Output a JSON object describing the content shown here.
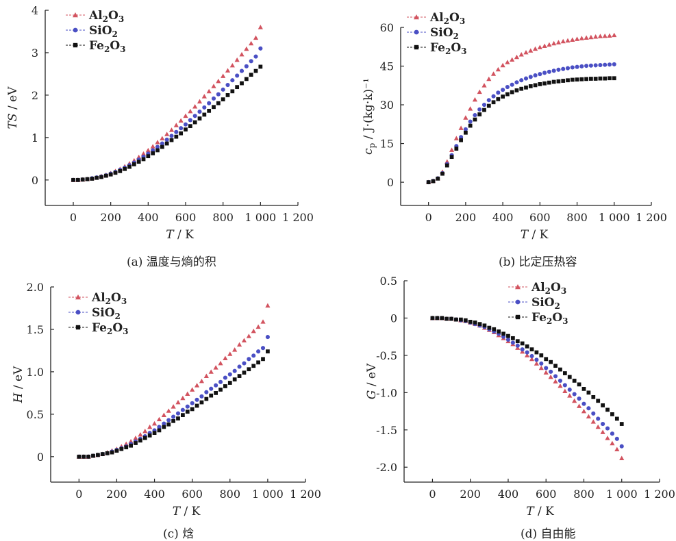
{
  "colors": {
    "Al2O3": "#d2535f",
    "SiO2": "#4a4fc4",
    "Fe2O3": "#111111",
    "axis": "#222222"
  },
  "markers": {
    "Al2O3": "triangle",
    "SiO2": "circle",
    "Fe2O3": "square"
  },
  "panels": [
    {
      "caption": "(a) 温度与熵的积"
    },
    {
      "caption": "(b) 比定压热容"
    },
    {
      "caption": "(c) 焓"
    },
    {
      "caption": "(d) 自由能"
    }
  ],
  "chart_data": [
    {
      "type": "scatter",
      "xlabel_main": "T",
      "xlabel_unit": " / K",
      "ylabel_main": "TS",
      "ylabel_unit": " / eV",
      "xlim": [
        -150,
        1200
      ],
      "ylim": [
        -0.6,
        4
      ],
      "xticks": [
        0,
        200,
        400,
        600,
        800,
        1000,
        1200
      ],
      "xtick_labels": [
        "0",
        "200",
        "400",
        "600",
        "800",
        "1 000",
        "1 200"
      ],
      "yticks": [
        0,
        1,
        2,
        3,
        4
      ],
      "ytick_labels": [
        "0",
        "1",
        "2",
        "3",
        "4"
      ],
      "grid": false,
      "legend": "top-left",
      "x": [
        0,
        25,
        50,
        75,
        100,
        125,
        150,
        175,
        200,
        225,
        250,
        275,
        300,
        325,
        350,
        375,
        400,
        425,
        450,
        475,
        500,
        525,
        550,
        575,
        600,
        625,
        650,
        675,
        700,
        725,
        750,
        775,
        800,
        825,
        850,
        875,
        900,
        925,
        950,
        975,
        1000
      ],
      "series": [
        {
          "name": "Al2O3",
          "values": [
            0,
            0,
            0.01,
            0.02,
            0.04,
            0.06,
            0.09,
            0.12,
            0.16,
            0.21,
            0.26,
            0.32,
            0.39,
            0.46,
            0.54,
            0.62,
            0.7,
            0.79,
            0.89,
            0.98,
            1.08,
            1.18,
            1.29,
            1.4,
            1.51,
            1.62,
            1.73,
            1.85,
            1.97,
            2.09,
            2.21,
            2.33,
            2.45,
            2.58,
            2.7,
            2.83,
            2.96,
            3.09,
            3.22,
            3.35,
            3.6
          ]
        },
        {
          "name": "SiO2",
          "values": [
            0,
            0,
            0.01,
            0.02,
            0.04,
            0.06,
            0.08,
            0.11,
            0.15,
            0.19,
            0.24,
            0.29,
            0.35,
            0.41,
            0.48,
            0.55,
            0.62,
            0.7,
            0.78,
            0.86,
            0.95,
            1.04,
            1.13,
            1.22,
            1.31,
            1.41,
            1.51,
            1.61,
            1.71,
            1.81,
            1.92,
            2.02,
            2.13,
            2.24,
            2.35,
            2.46,
            2.57,
            2.68,
            2.8,
            2.91,
            3.1
          ]
        },
        {
          "name": "Fe2O3",
          "values": [
            0,
            0,
            0.01,
            0.02,
            0.03,
            0.05,
            0.07,
            0.1,
            0.13,
            0.17,
            0.21,
            0.26,
            0.31,
            0.37,
            0.43,
            0.49,
            0.56,
            0.63,
            0.7,
            0.78,
            0.86,
            0.94,
            1.02,
            1.1,
            1.19,
            1.27,
            1.36,
            1.45,
            1.54,
            1.63,
            1.72,
            1.81,
            1.9,
            2,
            2.09,
            2.19,
            2.28,
            2.38,
            2.48,
            2.57,
            2.67
          ]
        }
      ]
    },
    {
      "type": "scatter",
      "xlabel_main": "T",
      "xlabel_unit": " / K",
      "ylabel_main": "c",
      "ylabel_sub": "p",
      "ylabel_unit": " / J·(kg·k)⁻¹",
      "xlim": [
        -150,
        1200
      ],
      "ylim": [
        -9,
        60
      ],
      "xticks": [
        0,
        200,
        400,
        600,
        800,
        1000,
        1200
      ],
      "xtick_labels": [
        "0",
        "200",
        "400",
        "600",
        "800",
        "1 000",
        "1 200"
      ],
      "yticks": [
        0,
        15,
        30,
        45,
        60
      ],
      "ytick_labels": [
        "0",
        "15",
        "30",
        "45",
        "60"
      ],
      "grid": false,
      "legend": "top-left",
      "x": [
        0,
        25,
        50,
        75,
        100,
        125,
        150,
        175,
        200,
        225,
        250,
        275,
        300,
        325,
        350,
        375,
        400,
        425,
        450,
        475,
        500,
        525,
        550,
        575,
        600,
        625,
        650,
        675,
        700,
        725,
        750,
        775,
        800,
        825,
        850,
        875,
        900,
        925,
        950,
        975,
        1000
      ],
      "series": [
        {
          "name": "Al2O3",
          "values": [
            0,
            0.5,
            1.5,
            4,
            8,
            12.5,
            17,
            21,
            25,
            28.5,
            32,
            35,
            37.5,
            40,
            42,
            43.7,
            45.3,
            46.5,
            47.5,
            48.5,
            49.5,
            50.3,
            51,
            51.7,
            52.3,
            52.8,
            53.3,
            53.8,
            54.2,
            54.6,
            54.9,
            55.2,
            55.5,
            55.8,
            56,
            56.2,
            56.4,
            56.6,
            56.7,
            56.8,
            57
          ]
        },
        {
          "name": "SiO2",
          "values": [
            0,
            0.5,
            1.5,
            3.5,
            7,
            10.5,
            14,
            17.5,
            20.5,
            23.5,
            26,
            28.2,
            30,
            31.8,
            33.3,
            34.7,
            35.8,
            36.9,
            37.8,
            38.7,
            39.5,
            40.2,
            40.8,
            41.4,
            41.9,
            42.4,
            42.8,
            43.2,
            43.6,
            43.9,
            44.2,
            44.5,
            44.7,
            44.9,
            45.1,
            45.2,
            45.3,
            45.4,
            45.5,
            45.6,
            45.7
          ]
        },
        {
          "name": "Fe2O3",
          "values": [
            0,
            0.4,
            1.4,
            3.3,
            6.5,
            9.8,
            13,
            16.3,
            19.2,
            21.9,
            24.3,
            26.3,
            28,
            29.6,
            31,
            32.2,
            33.2,
            34.1,
            34.9,
            35.6,
            36.2,
            36.7,
            37.2,
            37.6,
            38,
            38.3,
            38.6,
            38.9,
            39.1,
            39.3,
            39.5,
            39.7,
            39.8,
            39.9,
            40,
            40.1,
            40.1,
            40.2,
            40.2,
            40.3,
            40.3
          ]
        }
      ]
    },
    {
      "type": "scatter",
      "xlabel_main": "T",
      "xlabel_unit": " / K",
      "ylabel_main": "H",
      "ylabel_unit": " / eV",
      "xlim": [
        -150,
        1200
      ],
      "ylim": [
        -0.3,
        2
      ],
      "xticks": [
        0,
        200,
        400,
        600,
        800,
        1000,
        1200
      ],
      "xtick_labels": [
        "0",
        "200",
        "400",
        "600",
        "800",
        "1 000",
        "1 200"
      ],
      "yticks": [
        0,
        0.5,
        1.0,
        1.5,
        2.0
      ],
      "ytick_labels": [
        "0",
        "0.5",
        "1.0",
        "1.5",
        "2.0"
      ],
      "grid": false,
      "legend": "top-left",
      "x": [
        0,
        25,
        50,
        75,
        100,
        125,
        150,
        175,
        200,
        225,
        250,
        275,
        300,
        325,
        350,
        375,
        400,
        425,
        450,
        475,
        500,
        525,
        550,
        575,
        600,
        625,
        650,
        675,
        700,
        725,
        750,
        775,
        800,
        825,
        850,
        875,
        900,
        925,
        950,
        975,
        1000
      ],
      "series": [
        {
          "name": "Al2O3",
          "values": [
            0,
            0,
            0,
            0.01,
            0.02,
            0.03,
            0.05,
            0.07,
            0.09,
            0.12,
            0.15,
            0.18,
            0.22,
            0.26,
            0.3,
            0.35,
            0.39,
            0.44,
            0.49,
            0.54,
            0.59,
            0.64,
            0.69,
            0.74,
            0.79,
            0.84,
            0.89,
            0.95,
            1,
            1.05,
            1.1,
            1.16,
            1.21,
            1.26,
            1.32,
            1.37,
            1.42,
            1.48,
            1.53,
            1.59,
            1.78
          ]
        },
        {
          "name": "SiO2",
          "values": [
            0,
            0,
            0,
            0.01,
            0.02,
            0.03,
            0.04,
            0.06,
            0.08,
            0.1,
            0.12,
            0.15,
            0.18,
            0.21,
            0.24,
            0.28,
            0.31,
            0.35,
            0.39,
            0.43,
            0.47,
            0.51,
            0.55,
            0.59,
            0.63,
            0.67,
            0.71,
            0.76,
            0.8,
            0.84,
            0.88,
            0.93,
            0.97,
            1.01,
            1.06,
            1.1,
            1.15,
            1.19,
            1.24,
            1.28,
            1.41
          ]
        },
        {
          "name": "Fe2O3",
          "values": [
            0,
            0,
            0,
            0.01,
            0.02,
            0.03,
            0.04,
            0.05,
            0.07,
            0.09,
            0.11,
            0.13,
            0.16,
            0.19,
            0.22,
            0.25,
            0.28,
            0.31,
            0.35,
            0.38,
            0.42,
            0.45,
            0.49,
            0.53,
            0.56,
            0.6,
            0.64,
            0.68,
            0.72,
            0.75,
            0.79,
            0.83,
            0.87,
            0.91,
            0.95,
            0.99,
            1.03,
            1.07,
            1.11,
            1.15,
            1.24
          ]
        }
      ]
    },
    {
      "type": "scatter",
      "xlabel_main": "T",
      "xlabel_unit": " / K",
      "ylabel_main": "G",
      "ylabel_unit": " / eV",
      "xlim": [
        -150,
        1200
      ],
      "ylim": [
        -2.2,
        0.5
      ],
      "xticks": [
        0,
        200,
        400,
        600,
        800,
        1000,
        1200
      ],
      "xtick_labels": [
        "0",
        "200",
        "400",
        "600",
        "800",
        "1 000",
        "1 200"
      ],
      "yticks": [
        0.5,
        0,
        -0.5,
        -1.0,
        -1.5,
        -2.0
      ],
      "ytick_labels": [
        "0.5",
        "0",
        "-0.5",
        "-1.0",
        "-1.5",
        "-2.0"
      ],
      "grid": false,
      "legend": "top-center",
      "x": [
        0,
        25,
        50,
        75,
        100,
        125,
        150,
        175,
        200,
        225,
        250,
        275,
        300,
        325,
        350,
        375,
        400,
        425,
        450,
        475,
        500,
        525,
        550,
        575,
        600,
        625,
        650,
        675,
        700,
        725,
        750,
        775,
        800,
        825,
        850,
        875,
        900,
        925,
        950,
        975,
        1000
      ],
      "series": [
        {
          "name": "Al2O3",
          "values": [
            0,
            0,
            0,
            -0.01,
            -0.01,
            -0.02,
            -0.03,
            -0.04,
            -0.06,
            -0.08,
            -0.1,
            -0.13,
            -0.16,
            -0.19,
            -0.23,
            -0.27,
            -0.31,
            -0.35,
            -0.4,
            -0.45,
            -0.5,
            -0.55,
            -0.61,
            -0.67,
            -0.73,
            -0.79,
            -0.85,
            -0.91,
            -0.98,
            -1.04,
            -1.11,
            -1.18,
            -1.25,
            -1.32,
            -1.39,
            -1.46,
            -1.53,
            -1.61,
            -1.68,
            -1.76,
            -1.88
          ]
        },
        {
          "name": "SiO2",
          "values": [
            0,
            0,
            0,
            -0.01,
            -0.01,
            -0.02,
            -0.03,
            -0.04,
            -0.06,
            -0.08,
            -0.1,
            -0.12,
            -0.15,
            -0.18,
            -0.21,
            -0.25,
            -0.29,
            -0.33,
            -0.37,
            -0.42,
            -0.46,
            -0.51,
            -0.56,
            -0.61,
            -0.67,
            -0.72,
            -0.78,
            -0.84,
            -0.9,
            -0.96,
            -1.02,
            -1.08,
            -1.15,
            -1.21,
            -1.28,
            -1.35,
            -1.42,
            -1.48,
            -1.55,
            -1.62,
            -1.72
          ]
        },
        {
          "name": "Fe2O3",
          "values": [
            0,
            0,
            0,
            -0.01,
            -0.01,
            -0.02,
            -0.02,
            -0.03,
            -0.05,
            -0.06,
            -0.08,
            -0.1,
            -0.13,
            -0.15,
            -0.18,
            -0.21,
            -0.24,
            -0.27,
            -0.31,
            -0.34,
            -0.38,
            -0.42,
            -0.46,
            -0.5,
            -0.55,
            -0.59,
            -0.64,
            -0.69,
            -0.74,
            -0.79,
            -0.84,
            -0.89,
            -0.95,
            -1,
            -1.06,
            -1.11,
            -1.17,
            -1.23,
            -1.29,
            -1.35,
            -1.42
          ]
        }
      ]
    }
  ]
}
